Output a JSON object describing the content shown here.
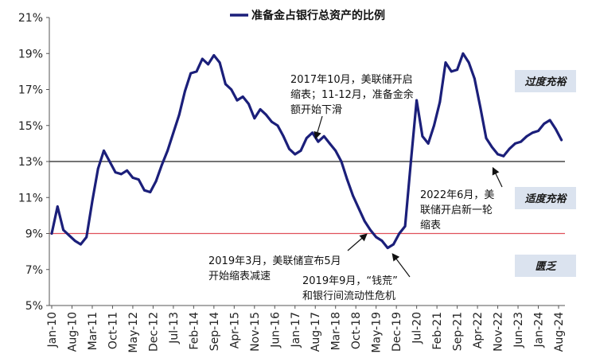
{
  "chart_data": {
    "type": "line",
    "title": "",
    "xlabel": "",
    "ylabel": "",
    "legend": {
      "label": "准备金占银行总资产的比例",
      "position": "top-center"
    },
    "line_color": "#1b1f7a",
    "x_tick_labels": [
      "Jan-10",
      "Aug-10",
      "Mar-11",
      "Oct-11",
      "May-12",
      "Dec-12",
      "Jul-13",
      "Feb-14",
      "Sep-14",
      "Apr-15",
      "Nov-15",
      "Jun-16",
      "Jan-17",
      "Aug-17",
      "Mar-18",
      "Oct-18",
      "May-19",
      "Dec-19",
      "Jul-20",
      "Feb-21",
      "Sep-21",
      "Apr-22",
      "Nov-22",
      "Jun-23",
      "Jan-24",
      "Aug-24"
    ],
    "y_ticks": [
      "5%",
      "7%",
      "9%",
      "11%",
      "13%",
      "15%",
      "17%",
      "19%",
      "21%"
    ],
    "ylim": [
      5,
      21
    ],
    "y_unit": "%",
    "reference_lines": [
      {
        "value": 13,
        "color": "#222222"
      },
      {
        "value": 9,
        "color": "#e0505a"
      }
    ],
    "series": [
      {
        "name": "准备金占银行总资产的比例",
        "x": [
          "2010-01",
          "2010-03",
          "2010-05",
          "2010-07",
          "2010-09",
          "2010-11",
          "2011-01",
          "2011-03",
          "2011-05",
          "2011-07",
          "2011-09",
          "2011-11",
          "2012-01",
          "2012-03",
          "2012-05",
          "2012-07",
          "2012-09",
          "2012-11",
          "2013-01",
          "2013-03",
          "2013-05",
          "2013-07",
          "2013-09",
          "2013-11",
          "2014-01",
          "2014-03",
          "2014-05",
          "2014-07",
          "2014-09",
          "2014-11",
          "2015-01",
          "2015-03",
          "2015-05",
          "2015-07",
          "2015-09",
          "2015-11",
          "2016-01",
          "2016-03",
          "2016-05",
          "2016-07",
          "2016-09",
          "2016-11",
          "2017-01",
          "2017-03",
          "2017-05",
          "2017-07",
          "2017-09",
          "2017-11",
          "2018-01",
          "2018-03",
          "2018-05",
          "2018-07",
          "2018-09",
          "2018-11",
          "2019-01",
          "2019-03",
          "2019-05",
          "2019-07",
          "2019-09",
          "2019-11",
          "2020-01",
          "2020-03",
          "2020-05",
          "2020-07",
          "2020-09",
          "2020-11",
          "2021-01",
          "2021-03",
          "2021-05",
          "2021-07",
          "2021-09",
          "2021-11",
          "2022-01",
          "2022-03",
          "2022-05",
          "2022-07",
          "2022-09",
          "2022-11",
          "2023-01",
          "2023-03",
          "2023-05",
          "2023-07",
          "2023-09",
          "2023-11",
          "2024-01",
          "2024-03",
          "2024-05",
          "2024-07",
          "2024-09"
        ],
        "values": [
          9.0,
          10.5,
          9.2,
          8.9,
          8.6,
          8.4,
          8.8,
          10.8,
          12.6,
          13.6,
          13.0,
          12.4,
          12.3,
          12.5,
          12.1,
          12.0,
          11.4,
          11.3,
          11.9,
          12.8,
          13.6,
          14.6,
          15.6,
          16.9,
          17.9,
          18.0,
          18.7,
          18.4,
          18.9,
          18.5,
          17.3,
          17.0,
          16.4,
          16.6,
          16.2,
          15.4,
          15.9,
          15.6,
          15.2,
          15.0,
          14.4,
          13.7,
          13.4,
          13.6,
          14.3,
          14.6,
          14.1,
          14.4,
          14.0,
          13.6,
          13.0,
          12.0,
          11.1,
          10.4,
          9.7,
          9.2,
          8.8,
          8.6,
          8.2,
          8.4,
          9.0,
          9.4,
          13.0,
          16.4,
          14.4,
          14.0,
          15.0,
          16.3,
          18.5,
          18.0,
          18.1,
          19.0,
          18.5,
          17.6,
          16.0,
          14.3,
          13.8,
          13.4,
          13.3,
          13.7,
          14.0,
          14.1,
          14.4,
          14.6,
          14.7,
          15.1,
          15.3,
          14.8,
          14.2
        ]
      }
    ],
    "annotations": [
      {
        "lines": [
          "2017年10月，美联储开启",
          "缩表；11-12月，准备金余",
          "额开始下滑"
        ]
      },
      {
        "lines": [
          "2022年6月，美",
          "联储开启新一轮",
          "缩表"
        ]
      },
      {
        "lines": [
          "2019年3月，美联储宣布5月",
          "开始缩表减速"
        ]
      },
      {
        "lines": [
          "2019年9月，“钱荒”",
          "和银行间流动性危机"
        ]
      }
    ],
    "zone_labels": [
      "过度充裕",
      "适度充裕",
      "匮乏"
    ],
    "zone_box_color": "#dbe3ef"
  }
}
